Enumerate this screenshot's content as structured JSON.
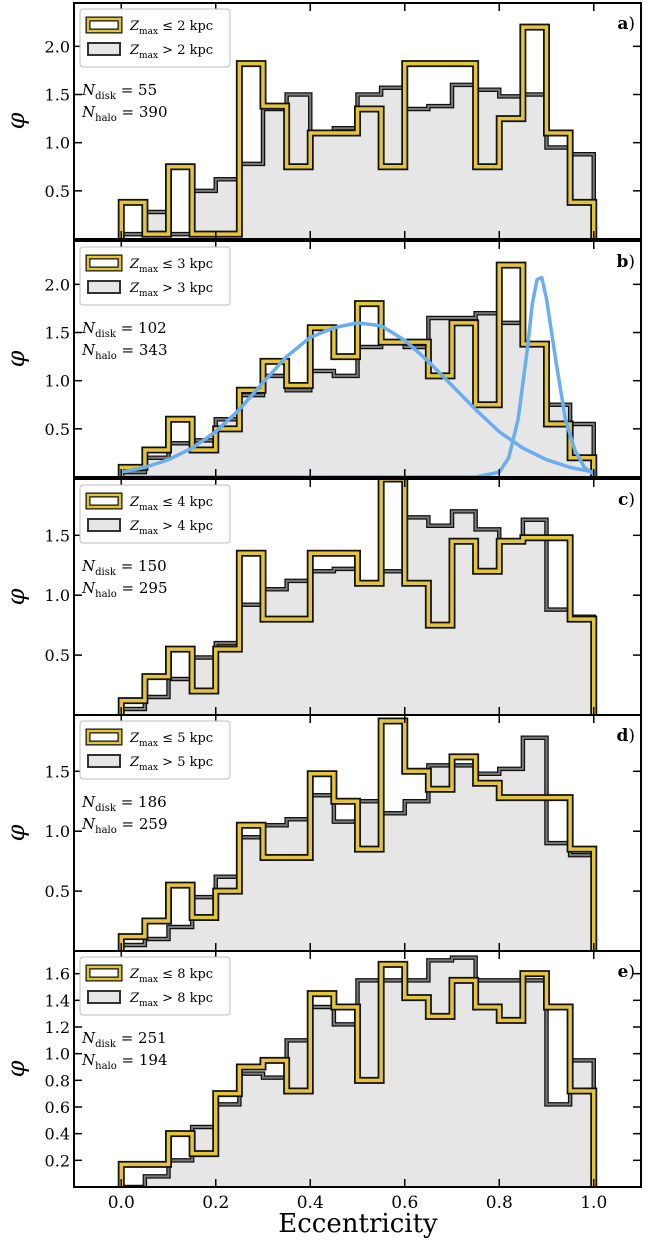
{
  "figure": {
    "xlabel": "Eccentricity",
    "ylabel": "φ",
    "xticks": [
      "0.0",
      "0.2",
      "0.4",
      "0.6",
      "0.8",
      "1.0"
    ]
  },
  "colors": {
    "disk_outline": "#e3c43a",
    "halo_fill": "#e6e6e6",
    "halo_outline": "#7a7a7a",
    "fit_curve": "#6aaef0"
  },
  "chart_data": [
    {
      "type": "step-histogram",
      "panel": "a)",
      "legend": [
        "Z_max ≤ 2 kpc",
        "Z_max > 2 kpc"
      ],
      "n_disk": "55",
      "n_halo": "390",
      "ylim": [
        0,
        2.45
      ],
      "yticks": [
        "0.5",
        "1.0",
        "1.5",
        "2.0"
      ],
      "bin_edges": [
        0.0,
        0.05,
        0.1,
        0.15,
        0.2,
        0.25,
        0.3,
        0.35,
        0.4,
        0.45,
        0.5,
        0.55,
        0.6,
        0.65,
        0.7,
        0.75,
        0.8,
        0.85,
        0.9,
        0.95,
        1.0
      ],
      "disk": [
        0.38,
        0.05,
        0.75,
        0.05,
        0.05,
        1.82,
        1.38,
        0.75,
        1.1,
        1.1,
        1.35,
        0.75,
        1.82,
        1.82,
        1.82,
        0.75,
        1.25,
        2.2,
        1.1,
        0.38
      ],
      "halo": [
        0.05,
        0.28,
        0.05,
        0.5,
        0.62,
        0.78,
        1.35,
        1.5,
        1.1,
        1.15,
        1.5,
        1.57,
        1.35,
        1.38,
        1.6,
        1.55,
        1.48,
        1.5,
        0.95,
        0.88
      ]
    },
    {
      "type": "step-histogram",
      "panel": "b)",
      "legend": [
        "Z_max ≤ 3 kpc",
        "Z_max > 3 kpc"
      ],
      "n_disk": "102",
      "n_halo": "343",
      "ylim": [
        0,
        2.45
      ],
      "yticks": [
        "0.5",
        "1.0",
        "1.5",
        "2.0"
      ],
      "bin_edges": [
        0.0,
        0.05,
        0.1,
        0.15,
        0.2,
        0.25,
        0.3,
        0.35,
        0.4,
        0.45,
        0.5,
        0.55,
        0.6,
        0.65,
        0.7,
        0.75,
        0.8,
        0.85,
        0.9,
        0.95,
        1.0
      ],
      "disk": [
        0.1,
        0.28,
        0.6,
        0.28,
        0.5,
        0.9,
        1.2,
        0.95,
        1.55,
        1.25,
        1.8,
        1.4,
        1.4,
        1.05,
        1.6,
        0.75,
        2.2,
        1.38,
        0.55,
        0.2
      ],
      "halo": [
        0.05,
        0.2,
        0.35,
        0.38,
        0.6,
        0.85,
        1.05,
        0.9,
        1.1,
        1.05,
        1.35,
        1.4,
        1.35,
        1.65,
        1.65,
        1.7,
        1.6,
        1.38,
        0.75,
        0.55
      ],
      "fit_curves": [
        {
          "x": [
            0.0,
            0.05,
            0.1,
            0.15,
            0.2,
            0.25,
            0.3,
            0.35,
            0.4,
            0.45,
            0.5,
            0.55,
            0.6,
            0.65,
            0.7,
            0.75,
            0.8,
            0.85,
            0.9,
            0.95,
            1.0
          ],
          "y": [
            0.05,
            0.1,
            0.18,
            0.3,
            0.47,
            0.7,
            0.98,
            1.25,
            1.45,
            1.55,
            1.6,
            1.57,
            1.42,
            1.2,
            0.95,
            0.7,
            0.47,
            0.3,
            0.18,
            0.1,
            0.05
          ]
        },
        {
          "x": [
            0.0,
            0.75,
            0.8,
            0.82,
            0.84,
            0.86,
            0.87,
            0.88,
            0.89,
            0.9,
            0.92,
            0.94,
            0.96,
            0.98,
            1.0
          ],
          "y": [
            0.0,
            0.0,
            0.05,
            0.2,
            0.6,
            1.35,
            1.8,
            2.05,
            2.07,
            1.85,
            1.2,
            0.6,
            0.28,
            0.1,
            0.03
          ]
        }
      ]
    },
    {
      "type": "step-histogram",
      "panel": "c)",
      "legend": [
        "Z_max ≤ 4 kpc",
        "Z_max > 4 kpc"
      ],
      "n_disk": "150",
      "n_halo": "295",
      "ylim": [
        0,
        1.97
      ],
      "yticks": [
        "0.5",
        "1.0",
        "1.5"
      ],
      "bin_edges": [
        0.0,
        0.05,
        0.1,
        0.15,
        0.2,
        0.25,
        0.3,
        0.35,
        0.4,
        0.45,
        0.5,
        0.55,
        0.6,
        0.65,
        0.7,
        0.75,
        0.8,
        0.85,
        0.9,
        0.95,
        1.0
      ],
      "disk": [
        0.12,
        0.32,
        0.55,
        0.2,
        0.55,
        1.35,
        0.8,
        0.8,
        1.35,
        1.35,
        1.1,
        1.97,
        1.1,
        0.75,
        1.45,
        1.2,
        1.45,
        1.48,
        1.48,
        0.8
      ],
      "halo": [
        0.05,
        0.15,
        0.3,
        0.48,
        0.6,
        0.92,
        1.05,
        1.12,
        1.2,
        1.22,
        1.1,
        1.2,
        1.65,
        1.58,
        1.7,
        1.55,
        1.45,
        1.63,
        0.88,
        0.82
      ]
    },
    {
      "type": "step-histogram",
      "panel": "d)",
      "legend": [
        "Z_max ≤ 5 kpc",
        "Z_max > 5 kpc"
      ],
      "n_disk": "186",
      "n_halo": "259",
      "ylim": [
        0,
        1.97
      ],
      "yticks": [
        "0.5",
        "1.0",
        "1.5"
      ],
      "bin_edges": [
        0.0,
        0.05,
        0.1,
        0.15,
        0.2,
        0.25,
        0.3,
        0.35,
        0.4,
        0.45,
        0.5,
        0.55,
        0.6,
        0.65,
        0.7,
        0.75,
        0.8,
        0.85,
        0.9,
        0.95,
        1.0
      ],
      "disk": [
        0.12,
        0.25,
        0.55,
        0.28,
        0.5,
        1.05,
        0.78,
        0.78,
        1.48,
        1.25,
        0.85,
        1.92,
        1.5,
        1.35,
        1.62,
        1.4,
        1.28,
        1.28,
        1.28,
        0.85
      ],
      "halo": [
        0.05,
        0.1,
        0.2,
        0.45,
        0.62,
        0.95,
        1.05,
        1.1,
        1.3,
        1.08,
        1.25,
        1.15,
        1.25,
        1.55,
        1.55,
        1.48,
        1.52,
        1.78,
        0.9,
        0.8
      ]
    },
    {
      "type": "step-histogram",
      "panel": "e)",
      "legend": [
        "Z_max ≤ 8 kpc",
        "Z_max > 8 kpc"
      ],
      "n_disk": "251",
      "n_halo": "194",
      "ylim": [
        0,
        1.77
      ],
      "yticks": [
        "0.2",
        "0.4",
        "0.6",
        "0.8",
        "1.0",
        "1.2",
        "1.4",
        "1.6"
      ],
      "bin_edges": [
        0.0,
        0.05,
        0.1,
        0.15,
        0.2,
        0.25,
        0.3,
        0.35,
        0.4,
        0.45,
        0.5,
        0.55,
        0.6,
        0.65,
        0.7,
        0.75,
        0.8,
        0.85,
        0.9,
        0.95,
        1.0
      ],
      "disk": [
        0.17,
        0.17,
        0.4,
        0.25,
        0.7,
        0.9,
        0.95,
        0.72,
        1.45,
        1.35,
        0.8,
        1.67,
        1.42,
        1.28,
        1.55,
        1.35,
        1.25,
        1.6,
        1.35,
        0.72
      ],
      "halo": [
        0.0,
        0.08,
        0.2,
        0.45,
        0.62,
        0.85,
        0.82,
        1.1,
        1.35,
        1.22,
        1.55,
        1.55,
        1.55,
        1.7,
        1.72,
        1.55,
        1.55,
        1.55,
        0.62,
        0.95
      ]
    }
  ]
}
